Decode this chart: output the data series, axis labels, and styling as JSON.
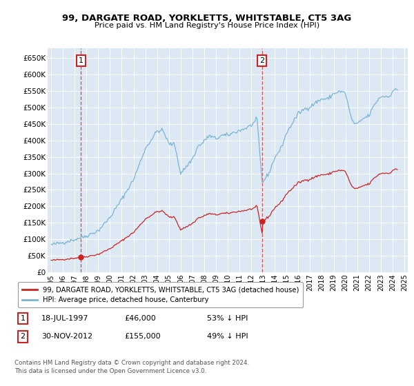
{
  "title": "99, DARGATE ROAD, YORKLETTS, WHITSTABLE, CT5 3AG",
  "subtitle": "Price paid vs. HM Land Registry's House Price Index (HPI)",
  "bg_color": "#dce9f5",
  "ylim": [
    0,
    680000
  ],
  "yticks": [
    0,
    50000,
    100000,
    150000,
    200000,
    250000,
    300000,
    350000,
    400000,
    450000,
    500000,
    550000,
    600000,
    650000
  ],
  "ytick_labels": [
    "£0",
    "£50K",
    "£100K",
    "£150K",
    "£200K",
    "£250K",
    "£300K",
    "£350K",
    "£400K",
    "£450K",
    "£500K",
    "£550K",
    "£600K",
    "£650K"
  ],
  "hpi_color": "#7ab3d4",
  "price_color": "#cc2222",
  "dashed_color": "#dd4444",
  "transaction1_x": 1997.54,
  "transaction1_y": 46000,
  "transaction2_x": 2012.92,
  "transaction2_y": 155000,
  "legend_label_red": "99, DARGATE ROAD, YORKLETTS, WHITSTABLE, CT5 3AG (detached house)",
  "legend_label_blue": "HPI: Average price, detached house, Canterbury",
  "table_row1": [
    "1",
    "18-JUL-1997",
    "£46,000",
    "53% ↓ HPI"
  ],
  "table_row2": [
    "2",
    "30-NOV-2012",
    "£155,000",
    "49% ↓ HPI"
  ],
  "footer": "Contains HM Land Registry data © Crown copyright and database right 2024.\nThis data is licensed under the Open Government Licence v3.0.",
  "hpi_x": [
    1995.0,
    1995.083,
    1995.167,
    1995.25,
    1995.333,
    1995.417,
    1995.5,
    1995.583,
    1995.667,
    1995.75,
    1995.833,
    1995.917,
    1996.0,
    1996.083,
    1996.167,
    1996.25,
    1996.333,
    1996.417,
    1996.5,
    1996.583,
    1996.667,
    1996.75,
    1996.833,
    1996.917,
    1997.0,
    1997.083,
    1997.167,
    1997.25,
    1997.333,
    1997.417,
    1997.5,
    1997.583,
    1997.667,
    1997.75,
    1997.833,
    1997.917,
    1998.0,
    1998.083,
    1998.167,
    1998.25,
    1998.333,
    1998.417,
    1998.5,
    1998.583,
    1998.667,
    1998.75,
    1998.833,
    1998.917,
    1999.0,
    1999.083,
    1999.167,
    1999.25,
    1999.333,
    1999.417,
    1999.5,
    1999.583,
    1999.667,
    1999.75,
    1999.833,
    1999.917,
    2000.0,
    2000.083,
    2000.167,
    2000.25,
    2000.333,
    2000.417,
    2000.5,
    2000.583,
    2000.667,
    2000.75,
    2000.833,
    2000.917,
    2001.0,
    2001.083,
    2001.167,
    2001.25,
    2001.333,
    2001.417,
    2001.5,
    2001.583,
    2001.667,
    2001.75,
    2001.833,
    2001.917,
    2002.0,
    2002.083,
    2002.167,
    2002.25,
    2002.333,
    2002.417,
    2002.5,
    2002.583,
    2002.667,
    2002.75,
    2002.833,
    2002.917,
    2003.0,
    2003.083,
    2003.167,
    2003.25,
    2003.333,
    2003.417,
    2003.5,
    2003.583,
    2003.667,
    2003.75,
    2003.833,
    2003.917,
    2004.0,
    2004.083,
    2004.167,
    2004.25,
    2004.333,
    2004.417,
    2004.5,
    2004.583,
    2004.667,
    2004.75,
    2004.833,
    2004.917,
    2005.0,
    2005.083,
    2005.167,
    2005.25,
    2005.333,
    2005.417,
    2005.5,
    2005.583,
    2005.667,
    2005.75,
    2005.833,
    2005.917,
    2006.0,
    2006.083,
    2006.167,
    2006.25,
    2006.333,
    2006.417,
    2006.5,
    2006.583,
    2006.667,
    2006.75,
    2006.833,
    2006.917,
    2007.0,
    2007.083,
    2007.167,
    2007.25,
    2007.333,
    2007.417,
    2007.5,
    2007.583,
    2007.667,
    2007.75,
    2007.833,
    2007.917,
    2008.0,
    2008.083,
    2008.167,
    2008.25,
    2008.333,
    2008.417,
    2008.5,
    2008.583,
    2008.667,
    2008.75,
    2008.833,
    2008.917,
    2009.0,
    2009.083,
    2009.167,
    2009.25,
    2009.333,
    2009.417,
    2009.5,
    2009.583,
    2009.667,
    2009.75,
    2009.833,
    2009.917,
    2010.0,
    2010.083,
    2010.167,
    2010.25,
    2010.333,
    2010.417,
    2010.5,
    2010.583,
    2010.667,
    2010.75,
    2010.833,
    2010.917,
    2011.0,
    2011.083,
    2011.167,
    2011.25,
    2011.333,
    2011.417,
    2011.5,
    2011.583,
    2011.667,
    2011.75,
    2011.833,
    2011.917,
    2012.0,
    2012.083,
    2012.167,
    2012.25,
    2012.333,
    2012.417,
    2012.5,
    2012.583,
    2012.667,
    2012.75,
    2012.833,
    2012.917,
    2013.0,
    2013.083,
    2013.167,
    2013.25,
    2013.333,
    2013.417,
    2013.5,
    2013.583,
    2013.667,
    2013.75,
    2013.833,
    2013.917,
    2014.0,
    2014.083,
    2014.167,
    2014.25,
    2014.333,
    2014.417,
    2014.5,
    2014.583,
    2014.667,
    2014.75,
    2014.833,
    2014.917,
    2015.0,
    2015.083,
    2015.167,
    2015.25,
    2015.333,
    2015.417,
    2015.5,
    2015.583,
    2015.667,
    2015.75,
    2015.833,
    2015.917,
    2016.0,
    2016.083,
    2016.167,
    2016.25,
    2016.333,
    2016.417,
    2016.5,
    2016.583,
    2016.667,
    2016.75,
    2016.833,
    2016.917,
    2017.0,
    2017.083,
    2017.167,
    2017.25,
    2017.333,
    2017.417,
    2017.5,
    2017.583,
    2017.667,
    2017.75,
    2017.833,
    2017.917,
    2018.0,
    2018.083,
    2018.167,
    2018.25,
    2018.333,
    2018.417,
    2018.5,
    2018.583,
    2018.667,
    2018.75,
    2018.833,
    2018.917,
    2019.0,
    2019.083,
    2019.167,
    2019.25,
    2019.333,
    2019.417,
    2019.5,
    2019.583,
    2019.667,
    2019.75,
    2019.833,
    2019.917,
    2020.0,
    2020.083,
    2020.167,
    2020.25,
    2020.333,
    2020.417,
    2020.5,
    2020.583,
    2020.667,
    2020.75,
    2020.833,
    2020.917,
    2021.0,
    2021.083,
    2021.167,
    2021.25,
    2021.333,
    2021.417,
    2021.5,
    2021.583,
    2021.667,
    2021.75,
    2021.833,
    2021.917,
    2022.0,
    2022.083,
    2022.167,
    2022.25,
    2022.333,
    2022.417,
    2022.5,
    2022.583,
    2022.667,
    2022.75,
    2022.833,
    2022.917,
    2023.0,
    2023.083,
    2023.167,
    2023.25,
    2023.333,
    2023.417,
    2023.5,
    2023.583,
    2023.667,
    2023.75,
    2023.833,
    2023.917,
    2024.0,
    2024.083,
    2024.167,
    2024.25
  ],
  "hpi_y": [
    83000,
    83500,
    84000,
    84500,
    85000,
    85800,
    86500,
    87200,
    87800,
    88200,
    88600,
    89000,
    89500,
    90200,
    91000,
    91800,
    92500,
    93300,
    94200,
    95200,
    96200,
    97000,
    97700,
    98300,
    99000,
    100000,
    101200,
    102500,
    103500,
    104500,
    105500,
    106500,
    107500,
    108300,
    109000,
    109600,
    110500,
    111500,
    112800,
    114000,
    115500,
    117000,
    118500,
    120000,
    121500,
    122800,
    124000,
    125200,
    126500,
    128500,
    131000,
    134000,
    137000,
    140500,
    144000,
    147500,
    151000,
    154500,
    158000,
    162000,
    166000,
    170500,
    175000,
    179500,
    184000,
    189000,
    194000,
    199000,
    204000,
    208500,
    213000,
    217500,
    222000,
    228000,
    234000,
    240000,
    246000,
    252000,
    258000,
    263500,
    268500,
    272500,
    276000,
    278500,
    281000,
    287000,
    294000,
    302000,
    311000,
    320000,
    329500,
    339000,
    348000,
    356000,
    363000,
    369000,
    375000,
    381000,
    388000,
    396000,
    404000,
    411500,
    418500,
    423500,
    427000,
    429500,
    430500,
    430000,
    429000,
    427000,
    424500,
    421500,
    418500,
    415000,
    411000,
    407000,
    403000,
    399500,
    396000,
    393000,
    390000,
    388000,
    387000,
    387000,
    387500,
    388500,
    290000,
    291000,
    292500,
    294000,
    296000,
    298000,
    300500,
    303000,
    306000,
    309500,
    313000,
    317000,
    321000,
    325000,
    329000,
    333000,
    337000,
    340000,
    344000,
    348000,
    352000,
    357000,
    363000,
    369000,
    375000,
    380000,
    384500,
    388000,
    391000,
    394000,
    397000,
    400500,
    404000,
    407000,
    410000,
    412000,
    413000,
    412500,
    411000,
    409000,
    407000,
    405500,
    405000,
    405000,
    405500,
    406500,
    408000,
    410000,
    412000,
    413500,
    414500,
    415000,
    415000,
    415000,
    415500,
    416500,
    418000,
    419500,
    421000,
    422500,
    424000,
    425000,
    426000,
    427000,
    428000,
    429000,
    430000,
    431000,
    432000,
    433000,
    434000,
    435000,
    436500,
    438000,
    439500,
    441000,
    442500,
    444000,
    446000,
    448500,
    451000,
    454000,
    457000,
    460000,
    463000,
    466000,
    468500,
    470500,
    472000,
    273000,
    275000,
    278000,
    282000,
    287000,
    293000,
    300000,
    307000,
    315000,
    323500,
    332000,
    340000,
    348000,
    355500,
    362000,
    368000,
    374000,
    380000,
    386000,
    392000,
    398000,
    404000,
    410000,
    416000,
    422000,
    428000,
    433000,
    438000,
    443000,
    448000,
    453000,
    458000,
    463000,
    468000,
    472500,
    477000,
    481500,
    485000,
    488000,
    490500,
    492500,
    494000,
    495000,
    496000,
    497000,
    498000,
    499000,
    500000,
    502000,
    505000,
    508500,
    512000,
    515500,
    518500,
    521000,
    523000,
    524500,
    525500,
    526000,
    526000,
    526500,
    527500,
    529000,
    531000,
    533500,
    536000,
    538500,
    540000,
    541000,
    541500,
    542000,
    542000,
    542500,
    543500,
    545000,
    547000,
    549000,
    551000,
    553000,
    555000,
    556500,
    558000,
    559000,
    560000,
    544000,
    530000,
    515000,
    500000,
    487000,
    476000,
    467000,
    460000,
    455000,
    452000,
    450000,
    449000,
    449000,
    449500,
    451000,
    453500,
    456000,
    458500,
    461000,
    463500,
    466000,
    468000,
    470000,
    472000,
    475000,
    479000,
    484000,
    490000,
    497000,
    504000,
    511000,
    517000,
    522000,
    526000,
    529000,
    531000,
    533000,
    534000,
    534500,
    535000,
    534500,
    534000,
    533500,
    533000,
    533000,
    533500,
    534500,
    536000,
    538000,
    540000,
    542000,
    544000,
    546000,
    548000,
    549500,
    550500,
    551000,
    551000,
    551000,
    551500,
    552000,
    553000
  ],
  "xlim": [
    1994.7,
    2025.3
  ],
  "xtick_years": [
    1995,
    1996,
    1997,
    1998,
    1999,
    2000,
    2001,
    2002,
    2003,
    2004,
    2005,
    2006,
    2007,
    2008,
    2009,
    2010,
    2011,
    2012,
    2013,
    2014,
    2015,
    2016,
    2017,
    2018,
    2019,
    2020,
    2021,
    2022,
    2023,
    2024,
    2025
  ]
}
